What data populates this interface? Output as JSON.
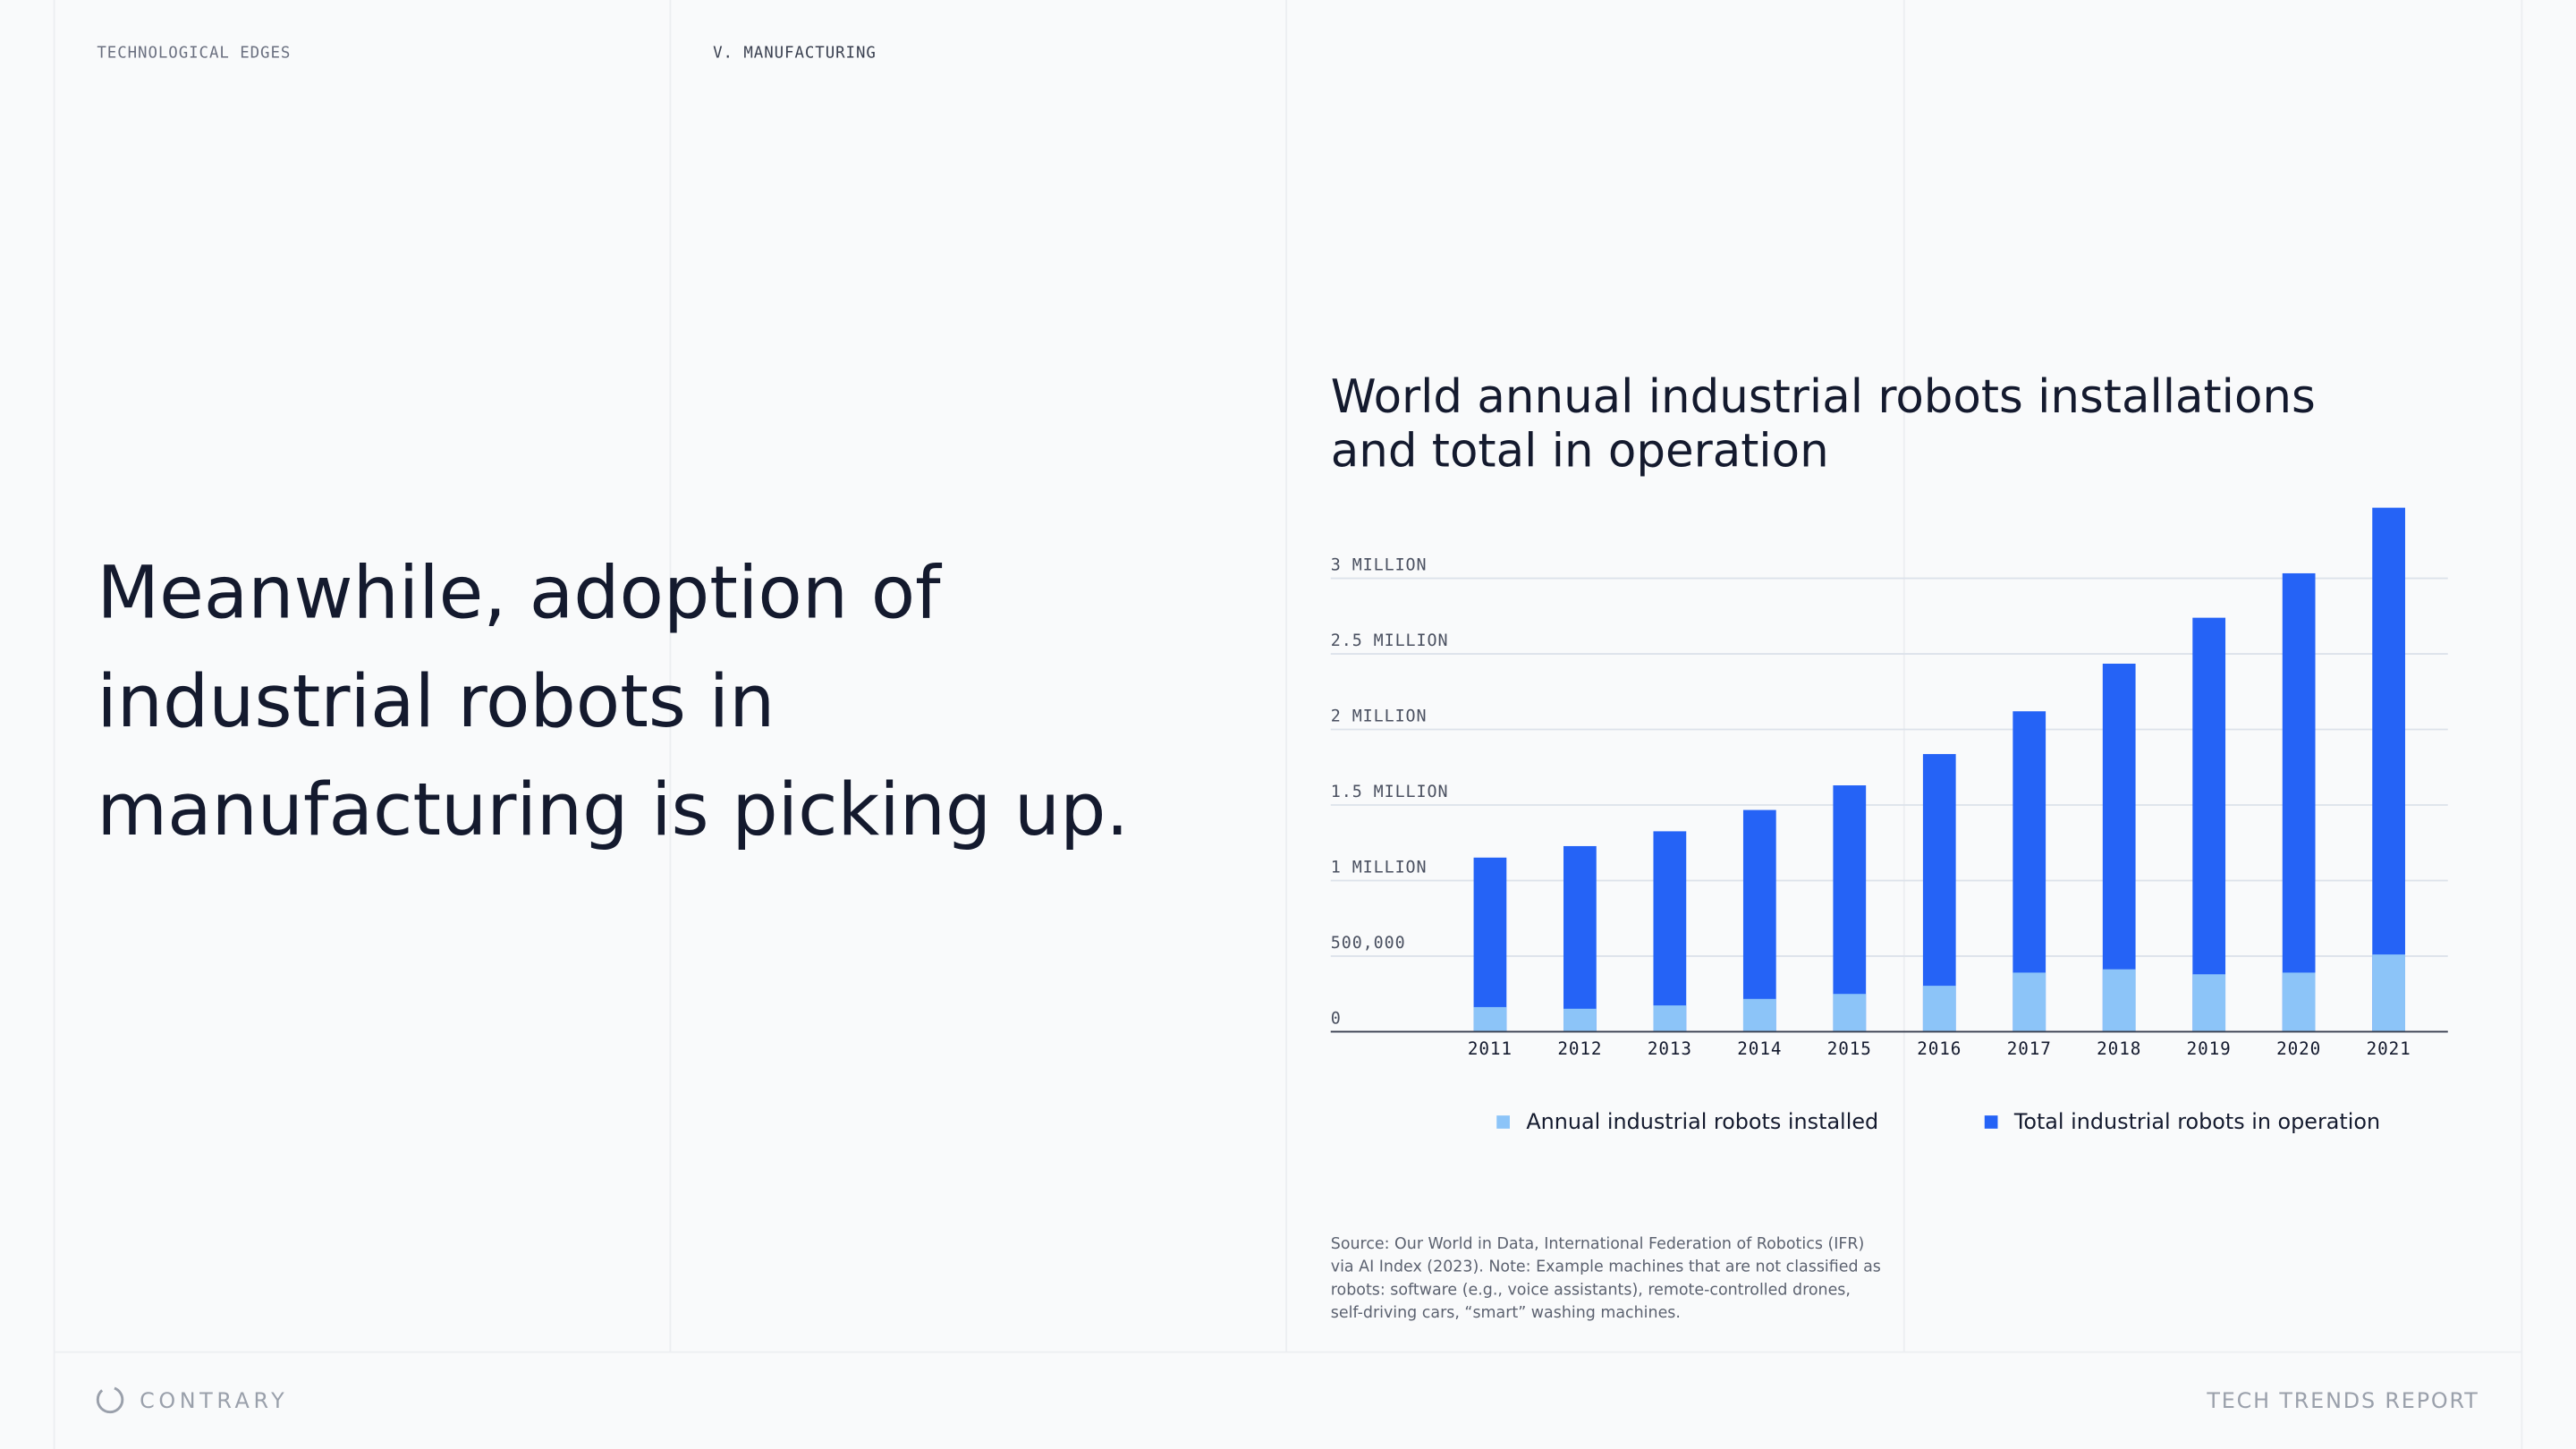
{
  "header": {
    "section": "TECHNOLOGICAL EDGES",
    "chapter": "V. MANUFACTURING"
  },
  "headline": [
    "Meanwhile, adoption of",
    "industrial robots in",
    "manufacturing is picking up."
  ],
  "chart_data": {
    "type": "bar",
    "title": [
      "World annual industrial robots installations",
      "and total in operation"
    ],
    "categories": [
      "2011",
      "2012",
      "2013",
      "2014",
      "2015",
      "2016",
      "2017",
      "2018",
      "2019",
      "2020",
      "2021"
    ],
    "series": [
      {
        "name": "Annual industrial robots installed",
        "color": "#8cc4f8",
        "values": [
          163000,
          152000,
          174000,
          217000,
          250000,
          304000,
          391000,
          413000,
          380000,
          391000,
          511000
        ]
      },
      {
        "name": "Total industrial robots in operation",
        "color": "#2563f6",
        "values": [
          1152000,
          1228000,
          1326000,
          1467000,
          1630000,
          1837000,
          2120000,
          2435000,
          2739000,
          3033000,
          3467000
        ]
      }
    ],
    "ylim": [
      0,
      3500000
    ],
    "yticks": [
      0,
      {
        "value": 500000,
        "label": "500,000"
      },
      {
        "value": 1000000,
        "label": "1 MILLION"
      },
      {
        "value": 1500000,
        "label": "1.5 MILLION"
      },
      {
        "value": 2000000,
        "label": "2 MILLION"
      },
      {
        "value": 2500000,
        "label": "2.5 MILLION"
      },
      {
        "value": 3000000,
        "label": "3 MILLION"
      }
    ],
    "grid": true
  },
  "source": [
    "Source: Our World in Data, International Federation of Robotics (IFR)",
    "via AI Index (2023). Note: Example machines that are not classified as",
    "robots: software (e.g., voice assistants), remote-controlled drones,",
    "self-driving cars, “smart” washing machines."
  ],
  "footer": {
    "brand": "CONTRARY",
    "report": "TECH TRENDS REPORT"
  }
}
